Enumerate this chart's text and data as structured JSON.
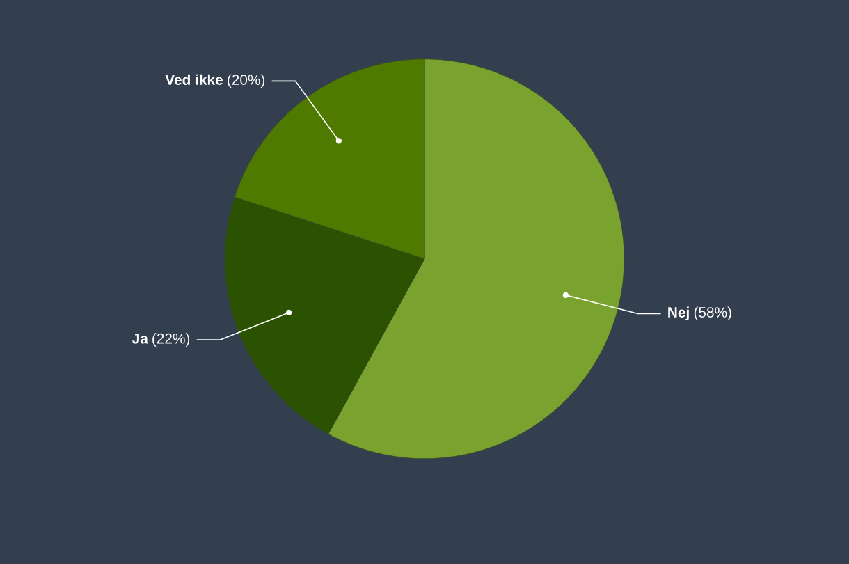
{
  "chart_data": {
    "type": "pie",
    "categories": [
      "Nej",
      "Ja",
      "Ved ikke"
    ],
    "values": [
      58,
      22,
      20
    ],
    "value_labels": [
      "(58%)",
      "(22%)",
      "(20%)"
    ],
    "colors": [
      "#7aa22f",
      "#2a5200",
      "#4f7a00"
    ],
    "legend": false
  }
}
